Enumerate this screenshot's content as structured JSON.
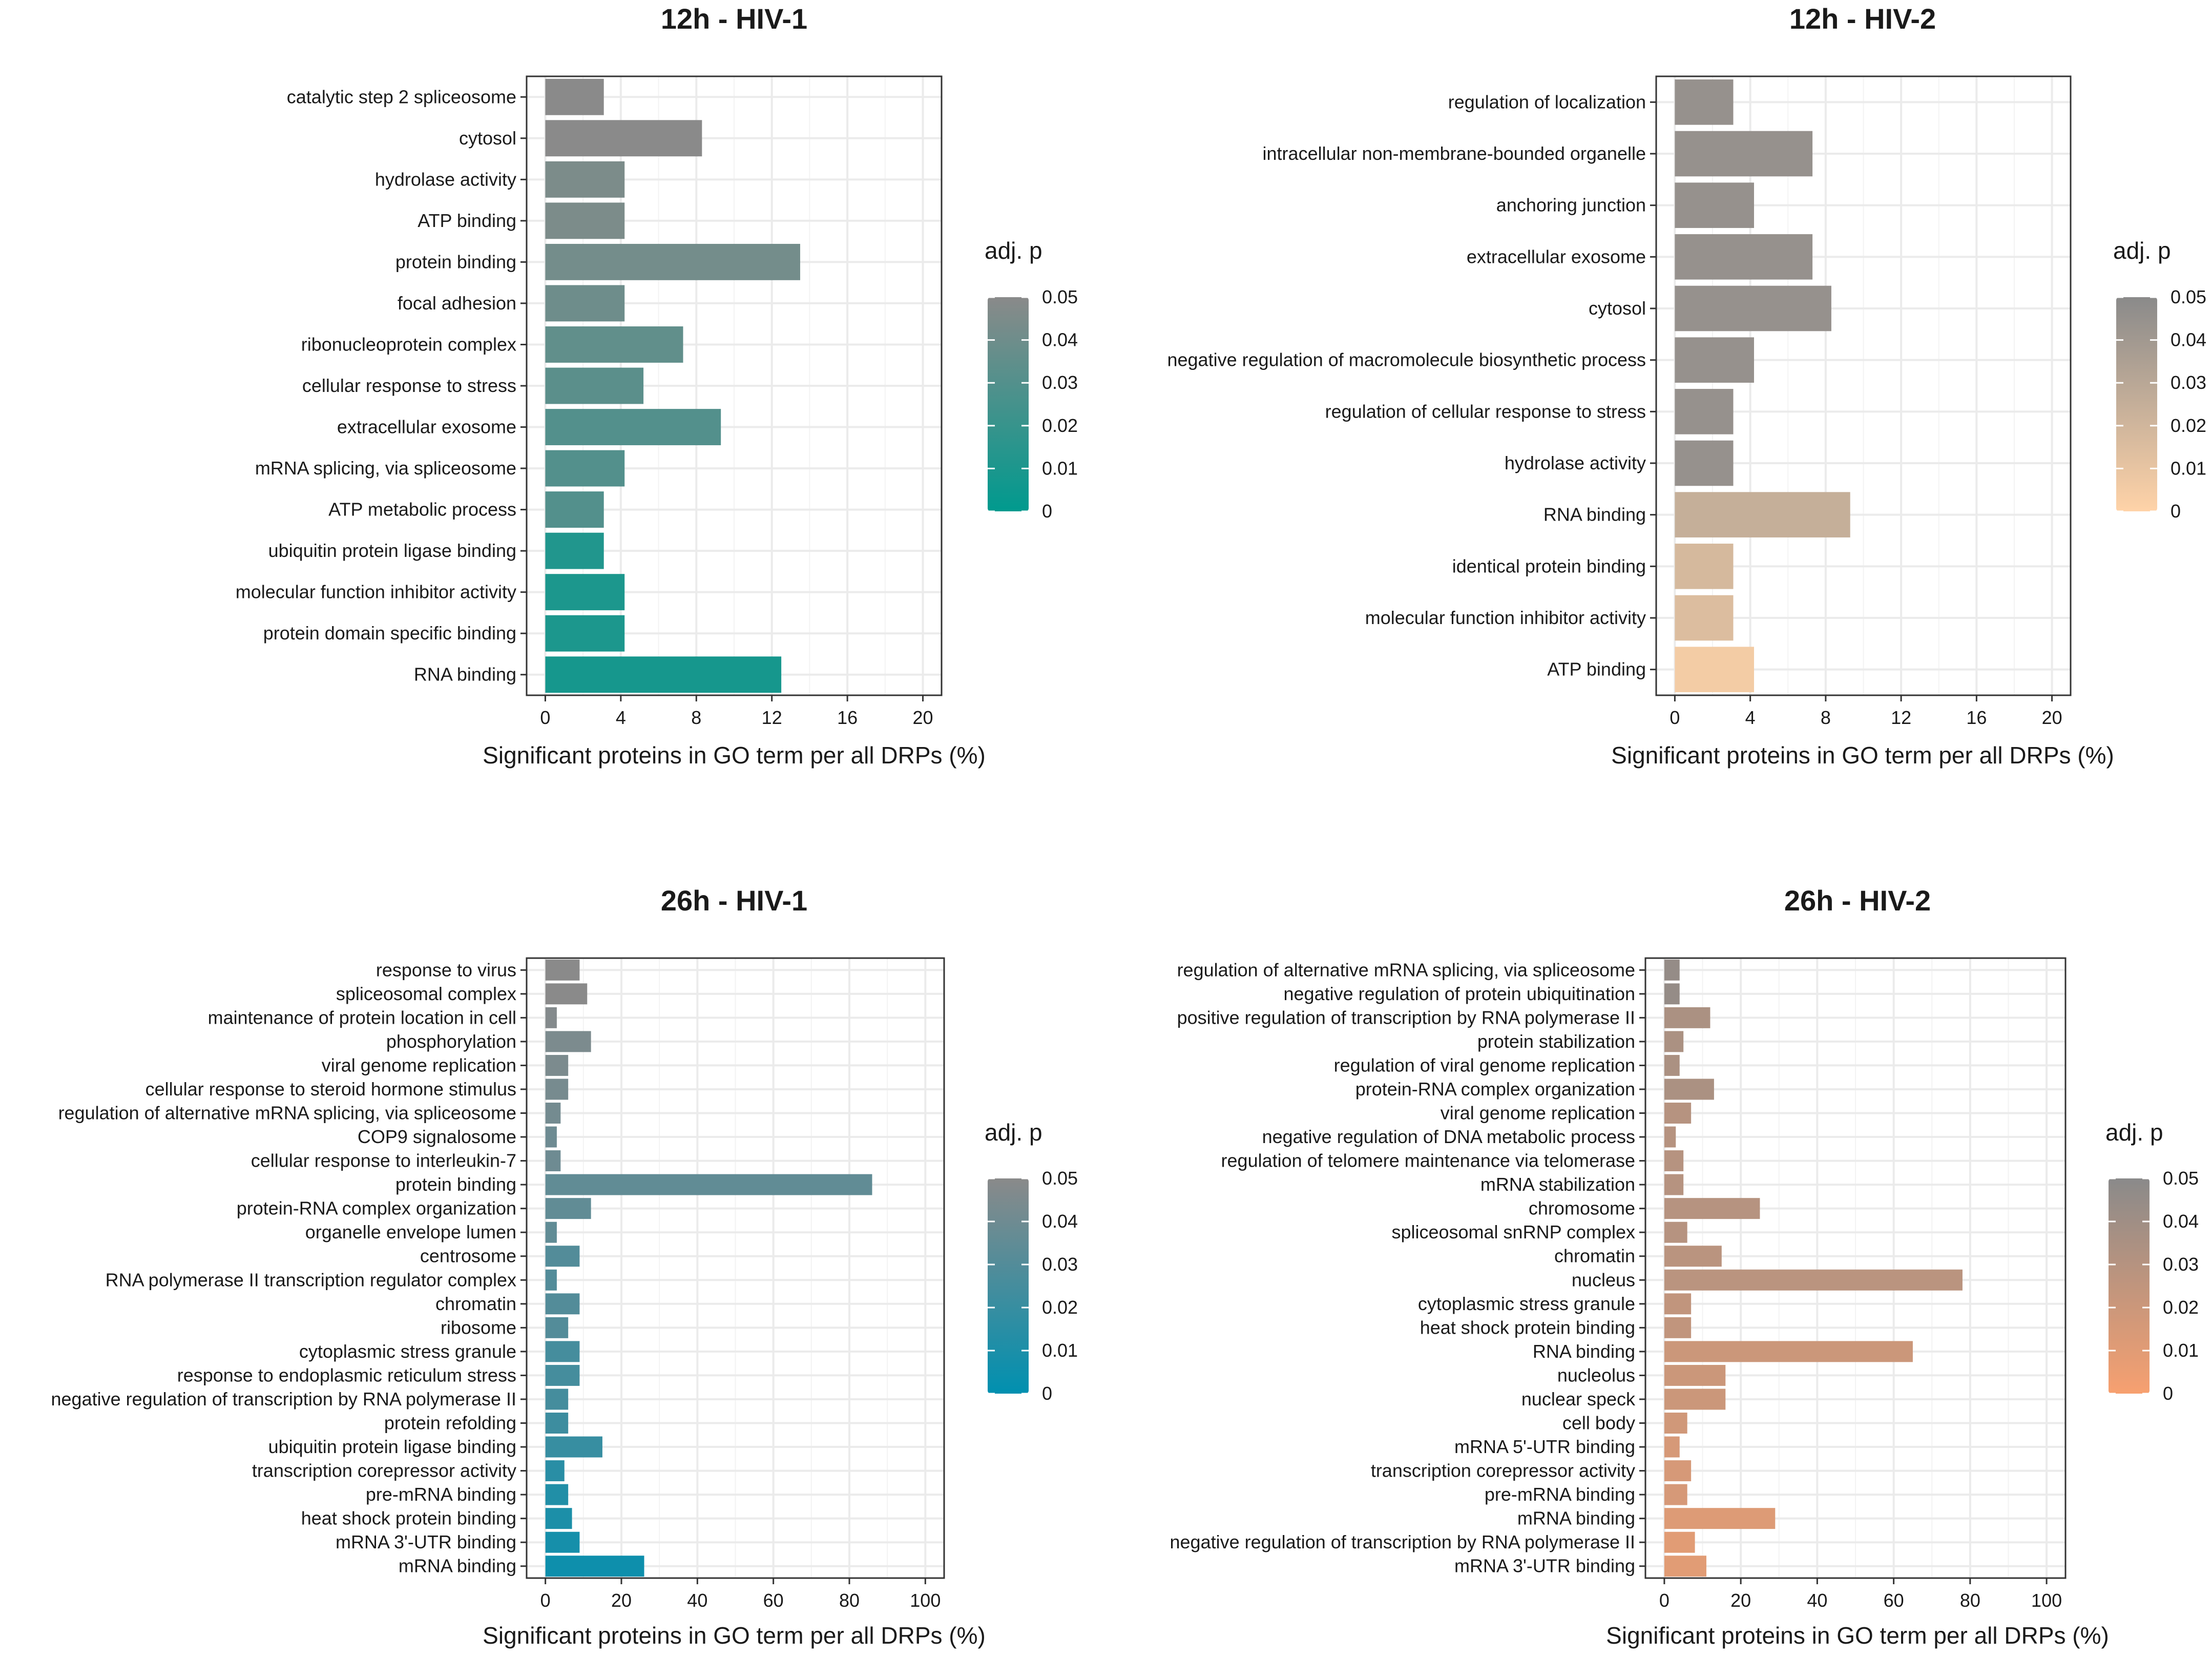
{
  "chart_data": [
    {
      "type": "bar",
      "orientation": "horizontal",
      "title": "12h - HIV-1",
      "xlabel": "Significant proteins in GO term per all DRPs (%)",
      "ylabel": "",
      "xlim": [
        0,
        20
      ],
      "xticks": [
        "0",
        "4",
        "8",
        "12",
        "16",
        "20"
      ],
      "legend": {
        "title": "adj. p",
        "ticks": [
          "0.05",
          "0.04",
          "0.03",
          "0.02",
          "0.01",
          "0"
        ],
        "color_low": "#009a8e",
        "color_high": "#8a8a8a",
        "placement": "right"
      },
      "categories": [
        "catalytic step 2 spliceosome",
        "cytosol",
        "hydrolase activity",
        "ATP binding",
        "protein binding",
        "focal adhesion",
        "ribonucleoprotein complex",
        "cellular response to stress",
        "extracellular exosome",
        "mRNA splicing, via spliceosome",
        "ATP metabolic process",
        "ubiquitin protein ligase binding",
        "molecular function inhibitor activity",
        "protein domain specific binding",
        "RNA binding"
      ],
      "values": [
        3.1,
        8.3,
        4.2,
        4.2,
        13.5,
        4.2,
        7.3,
        5.2,
        9.3,
        4.2,
        3.1,
        3.1,
        4.2,
        4.2,
        12.5
      ],
      "adj_p": [
        0.05,
        0.05,
        0.045,
        0.045,
        0.042,
        0.04,
        0.035,
        0.033,
        0.03,
        0.03,
        0.03,
        0.012,
        0.01,
        0.01,
        0.008
      ]
    },
    {
      "type": "bar",
      "orientation": "horizontal",
      "title": "12h - HIV-2",
      "xlabel": "Significant proteins in GO term per all DRPs (%)",
      "ylabel": "",
      "xlim": [
        0,
        20
      ],
      "xticks": [
        "0",
        "4",
        "8",
        "12",
        "16",
        "20"
      ],
      "legend": {
        "title": "adj. p",
        "ticks": [
          "0.05",
          "0.04",
          "0.03",
          "0.02",
          "0.01",
          "0"
        ],
        "color_low": "#ffd3a8",
        "color_high": "#8a8a8a",
        "placement": "right"
      },
      "categories": [
        "regulation of localization",
        "intracellular non-membrane-bounded organelle",
        "anchoring junction",
        "extracellular exosome",
        "cytosol",
        "negative regulation of macromolecule biosynthetic process",
        "regulation of cellular response to stress",
        "hydrolase activity",
        "RNA binding",
        "identical protein binding",
        "molecular function inhibitor activity",
        "ATP binding"
      ],
      "values": [
        3.1,
        7.3,
        4.2,
        7.3,
        8.3,
        4.2,
        3.1,
        3.1,
        9.3,
        3.1,
        3.1,
        4.2
      ],
      "adj_p": [
        0.045,
        0.045,
        0.045,
        0.045,
        0.045,
        0.045,
        0.045,
        0.045,
        0.025,
        0.018,
        0.015,
        0.005
      ]
    },
    {
      "type": "bar",
      "orientation": "horizontal",
      "title": "26h - HIV-1",
      "xlabel": "Significant proteins in GO term per all DRPs (%)",
      "ylabel": "",
      "xlim": [
        0,
        100
      ],
      "xticks": [
        "0",
        "20",
        "40",
        "60",
        "80",
        "100"
      ],
      "legend": {
        "title": "adj. p",
        "ticks": [
          "0.05",
          "0.04",
          "0.03",
          "0.02",
          "0.01",
          "0"
        ],
        "color_low": "#0090b0",
        "color_high": "#8a8a8a",
        "placement": "right"
      },
      "categories": [
        "response to virus",
        "spliceosomal complex",
        "maintenance of protein location in cell",
        "phosphorylation",
        "viral genome replication",
        "cellular response to steroid hormone stimulus",
        "regulation of alternative mRNA splicing, via spliceosome",
        "COP9 signalosome",
        "cellular response to interleukin-7",
        "protein binding",
        "protein-RNA complex organization",
        "organelle envelope lumen",
        "centrosome",
        "RNA polymerase II transcription regulator complex",
        "chromatin",
        "ribosome",
        "cytoplasmic stress granule",
        "response to endoplasmic reticulum stress",
        "negative regulation of transcription by RNA polymerase II",
        "protein refolding",
        "ubiquitin protein ligase binding",
        "transcription corepressor activity",
        "pre-mRNA binding",
        "heat shock protein binding",
        "mRNA 3'-UTR binding",
        "mRNA binding"
      ],
      "values": [
        9,
        11,
        3,
        12,
        6,
        6,
        4,
        3,
        4,
        86,
        12,
        3,
        9,
        3,
        9,
        6,
        9,
        9,
        6,
        6,
        15,
        5,
        6,
        7,
        9,
        26
      ],
      "adj_p": [
        0.05,
        0.05,
        0.048,
        0.045,
        0.045,
        0.043,
        0.042,
        0.04,
        0.04,
        0.035,
        0.035,
        0.035,
        0.03,
        0.03,
        0.03,
        0.03,
        0.025,
        0.025,
        0.025,
        0.022,
        0.02,
        0.015,
        0.012,
        0.01,
        0.008,
        0.005
      ]
    },
    {
      "type": "bar",
      "orientation": "horizontal",
      "title": "26h - HIV-2",
      "xlabel": "Significant proteins in GO term per all DRPs (%)",
      "ylabel": "",
      "xlim": [
        0,
        100
      ],
      "xticks": [
        "0",
        "20",
        "40",
        "60",
        "80",
        "100"
      ],
      "legend": {
        "title": "adj. p",
        "ticks": [
          "0.05",
          "0.04",
          "0.03",
          "0.02",
          "0.01",
          "0"
        ],
        "color_low": "#f7a070",
        "color_high": "#8a8a8a",
        "placement": "right"
      },
      "categories": [
        "regulation of alternative mRNA splicing, via spliceosome",
        "negative regulation of protein ubiquitination",
        "positive regulation of transcription by RNA polymerase II",
        "protein stabilization",
        "regulation of viral genome replication",
        "protein-RNA complex organization",
        "viral genome replication",
        "negative regulation of DNA metabolic process",
        "regulation of telomere maintenance via telomerase",
        "mRNA stabilization",
        "chromosome",
        "spliceosomal snRNP complex",
        "chromatin",
        "nucleus",
        "cytoplasmic stress granule",
        "heat shock protein binding",
        "RNA binding",
        "nucleolus",
        "nuclear speck",
        "cell body",
        "mRNA 5'-UTR binding",
        "transcription corepressor activity",
        "pre-mRNA binding",
        "mRNA binding",
        "negative regulation of transcription by RNA polymerase II",
        "mRNA 3'-UTR binding"
      ],
      "values": [
        4,
        4,
        12,
        5,
        4,
        13,
        7,
        3,
        5,
        5,
        25,
        6,
        15,
        78,
        7,
        7,
        65,
        16,
        16,
        6,
        4,
        7,
        6,
        29,
        8,
        11
      ],
      "adj_p": [
        0.045,
        0.045,
        0.035,
        0.035,
        0.035,
        0.035,
        0.03,
        0.03,
        0.03,
        0.03,
        0.03,
        0.03,
        0.028,
        0.028,
        0.025,
        0.025,
        0.02,
        0.02,
        0.02,
        0.018,
        0.015,
        0.015,
        0.015,
        0.012,
        0.01,
        0.01
      ]
    }
  ]
}
